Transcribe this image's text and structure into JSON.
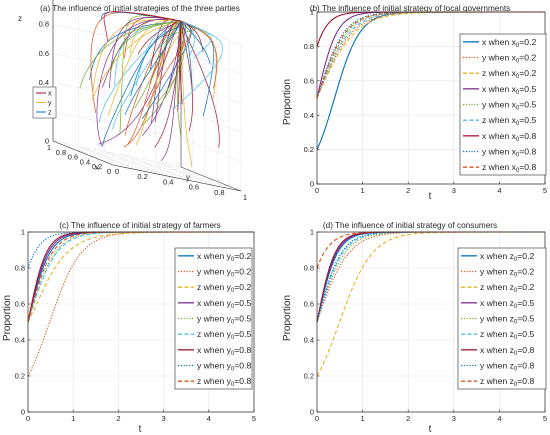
{
  "colors": {
    "blue": "#0072BD",
    "orange": "#D95319",
    "yellow": "#EDB120",
    "purple": "#7E2F8E",
    "green": "#77AC30",
    "cyan": "#4DBEEE",
    "darkred": "#A2142F",
    "axis": "#262626",
    "grid": "#e6e6e6"
  },
  "chart_data": [
    {
      "type": "line3d",
      "title": "(a) The influence of initial strategies of the three parties",
      "xlabel": "x",
      "ylabel": "y",
      "zlabel": "z",
      "x_ticks": [
        "0",
        "0.2",
        "0.4",
        "0.6",
        "0.8",
        "1"
      ],
      "y_ticks": [
        "0",
        "0.2",
        "0.4",
        "0.6",
        "0.8",
        "1"
      ],
      "z_ticks": [
        "0",
        "0.2",
        "0.4",
        "0.6",
        "0.8",
        "1"
      ],
      "xlim": [
        0,
        1
      ],
      "ylim": [
        0,
        1
      ],
      "zlim": [
        0,
        1
      ],
      "grid": true,
      "legend_position": "left",
      "legend": [
        {
          "name": "x",
          "color": "darkred"
        },
        {
          "name": "y",
          "color": "yellow"
        },
        {
          "name": "z",
          "color": "blue"
        }
      ],
      "trajectory_count": 60,
      "end_point": [
        1,
        1,
        1
      ]
    },
    {
      "type": "line",
      "title": "(b) The influence of initial strategy of local governments",
      "xlabel": "t",
      "ylabel": "Proportion",
      "xlim": [
        0,
        5
      ],
      "ylim": [
        0,
        1
      ],
      "x_ticks": [
        "0",
        "1",
        "2",
        "3",
        "4",
        "5"
      ],
      "y_ticks": [
        "0",
        "0.2",
        "0.4",
        "0.6",
        "0.8",
        "1"
      ],
      "grid": true,
      "legend_position": "right",
      "series": [
        {
          "name": "x when x0=0.2",
          "label_main": "x when x",
          "label_sub": "0",
          "label_end": "=0.2",
          "color": "blue",
          "dash": "solid",
          "y0": 0.2,
          "rate": 3.6
        },
        {
          "name": "y when x0=0.2",
          "label_main": "y when x",
          "label_sub": "0",
          "label_end": "=0.2",
          "color": "orange",
          "dash": "dotted",
          "y0": 0.5,
          "rate": 2.6
        },
        {
          "name": "z when x0=0.2",
          "label_main": "z when x",
          "label_sub": "0",
          "label_end": "=0.2",
          "color": "yellow",
          "dash": "dashed",
          "y0": 0.5,
          "rate": 2.4
        },
        {
          "name": "x when x0=0.5",
          "label_main": "x when x",
          "label_sub": "0",
          "label_end": "=0.5",
          "color": "purple",
          "dash": "solid",
          "y0": 0.5,
          "rate": 4.6
        },
        {
          "name": "y when x0=0.5",
          "label_main": "y when x",
          "label_sub": "0",
          "label_end": "=0.5",
          "color": "green",
          "dash": "dotted",
          "y0": 0.5,
          "rate": 3.0
        },
        {
          "name": "z when x0=0.5",
          "label_main": "z when x",
          "label_sub": "0",
          "label_end": "=0.5",
          "color": "cyan",
          "dash": "dashed",
          "y0": 0.5,
          "rate": 2.8
        },
        {
          "name": "x when x0=0.8",
          "label_main": "x when x",
          "label_sub": "0",
          "label_end": "=0.8",
          "color": "darkred",
          "dash": "solid",
          "y0": 0.8,
          "rate": 5.0
        },
        {
          "name": "y when x0=0.8",
          "label_main": "y when x",
          "label_sub": "0",
          "label_end": "=0.8",
          "color": "blue",
          "dash": "dotted",
          "y0": 0.5,
          "rate": 3.4
        },
        {
          "name": "z when x0=0.8",
          "label_main": "z when x",
          "label_sub": "0",
          "label_end": "=0.8",
          "color": "orange",
          "dash": "dashed",
          "y0": 0.5,
          "rate": 3.2
        }
      ]
    },
    {
      "type": "line",
      "title": "(c) The influence of initial strategy of farmers",
      "xlabel": "t",
      "ylabel": "Proportion",
      "xlim": [
        0,
        5
      ],
      "ylim": [
        0,
        1
      ],
      "x_ticks": [
        "0",
        "1",
        "2",
        "3",
        "4",
        "5"
      ],
      "y_ticks": [
        "0",
        "0.2",
        "0.4",
        "0.6",
        "0.8",
        "1"
      ],
      "grid": true,
      "legend_position": "right",
      "series": [
        {
          "name": "x when y0=0.2",
          "label_main": "x when y",
          "label_sub": "0",
          "label_end": "=0.2",
          "color": "blue",
          "dash": "solid",
          "y0": 0.5,
          "rate": 4.2
        },
        {
          "name": "y when y0=0.2",
          "label_main": "y when y",
          "label_sub": "0",
          "label_end": "=0.2",
          "color": "orange",
          "dash": "dotted",
          "y0": 0.2,
          "rate": 2.9
        },
        {
          "name": "z when y0=0.2",
          "label_main": "z when y",
          "label_sub": "0",
          "label_end": "=0.2",
          "color": "yellow",
          "dash": "dashed",
          "y0": 0.5,
          "rate": 2.7,
          "dip": 0.07
        },
        {
          "name": "x when y0=0.5",
          "label_main": "x when y",
          "label_sub": "0",
          "label_end": "=0.5",
          "color": "purple",
          "dash": "solid",
          "y0": 0.5,
          "rate": 4.6
        },
        {
          "name": "y when y0=0.5",
          "label_main": "y when y",
          "label_sub": "0",
          "label_end": "=0.5",
          "color": "green",
          "dash": "dotted",
          "y0": 0.5,
          "rate": 3.4
        },
        {
          "name": "z when y0=0.5",
          "label_main": "z when y",
          "label_sub": "0",
          "label_end": "=0.5",
          "color": "cyan",
          "dash": "dashed",
          "y0": 0.5,
          "rate": 3.2
        },
        {
          "name": "x when y0=0.8",
          "label_main": "x when y",
          "label_sub": "0",
          "label_end": "=0.8",
          "color": "darkred",
          "dash": "solid",
          "y0": 0.5,
          "rate": 5.0
        },
        {
          "name": "y when y0=0.8",
          "label_main": "y when y",
          "label_sub": "0",
          "label_end": "=0.8",
          "color": "blue",
          "dash": "dotted",
          "y0": 0.8,
          "rate": 4.5
        },
        {
          "name": "z when y0=0.8",
          "label_main": "z when y",
          "label_sub": "0",
          "label_end": "=0.8",
          "color": "orange",
          "dash": "dashed",
          "y0": 0.5,
          "rate": 3.8
        }
      ]
    },
    {
      "type": "line",
      "title": "(d) The influence of initial strategy of consumers",
      "xlabel": "t",
      "ylabel": "Proportion",
      "xlim": [
        0,
        5
      ],
      "ylim": [
        0,
        1
      ],
      "x_ticks": [
        "0",
        "1",
        "2",
        "3",
        "4",
        "5"
      ],
      "y_ticks": [
        "0",
        "0.2",
        "0.4",
        "0.6",
        "0.8",
        "1"
      ],
      "grid": true,
      "legend_position": "right",
      "series": [
        {
          "name": "x when z0=0.2",
          "label_main": "x when z",
          "label_sub": "0",
          "label_end": "=0.2",
          "color": "blue",
          "dash": "solid",
          "y0": 0.5,
          "rate": 4.5
        },
        {
          "name": "y when z0=0.2",
          "label_main": "y when z",
          "label_sub": "0",
          "label_end": "=0.2",
          "color": "orange",
          "dash": "dotted",
          "y0": 0.5,
          "rate": 2.9
        },
        {
          "name": "z when z0=0.2",
          "label_main": "z when z",
          "label_sub": "0",
          "label_end": "=0.2",
          "color": "yellow",
          "dash": "dashed",
          "y0": 0.2,
          "rate": 2.8
        },
        {
          "name": "x when z0=0.5",
          "label_main": "x when z",
          "label_sub": "0",
          "label_end": "=0.5",
          "color": "purple",
          "dash": "solid",
          "y0": 0.5,
          "rate": 4.8
        },
        {
          "name": "y when z0=0.5",
          "label_main": "y when z",
          "label_sub": "0",
          "label_end": "=0.5",
          "color": "green",
          "dash": "dotted",
          "y0": 0.5,
          "rate": 3.3
        },
        {
          "name": "z when z0=0.5",
          "label_main": "z when z",
          "label_sub": "0",
          "label_end": "=0.5",
          "color": "cyan",
          "dash": "dashed",
          "y0": 0.5,
          "rate": 3.6
        },
        {
          "name": "x when z0=0.8",
          "label_main": "x when z",
          "label_sub": "0",
          "label_end": "=0.8",
          "color": "darkred",
          "dash": "solid",
          "y0": 0.5,
          "rate": 5.1
        },
        {
          "name": "y when z0=0.8",
          "label_main": "y when z",
          "label_sub": "0",
          "label_end": "=0.8",
          "color": "blue",
          "dash": "dotted",
          "y0": 0.5,
          "rate": 3.8
        },
        {
          "name": "z when z0=0.8",
          "label_main": "z when z",
          "label_sub": "0",
          "label_end": "=0.8",
          "color": "orange",
          "dash": "dashed",
          "y0": 0.8,
          "rate": 4.2
        }
      ]
    }
  ]
}
